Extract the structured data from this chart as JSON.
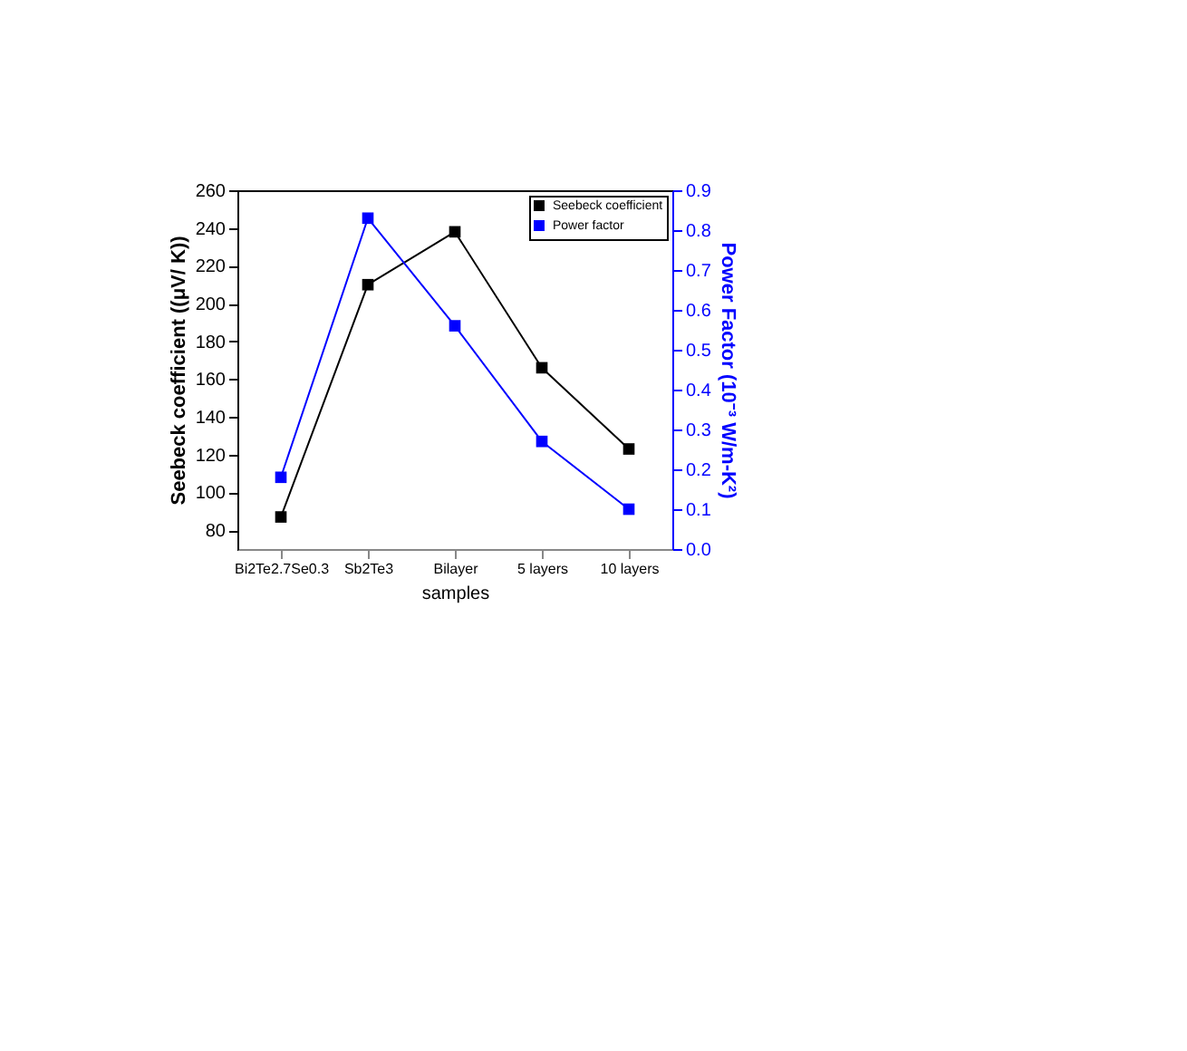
{
  "chart_data": {
    "type": "line",
    "xlabel": "samples",
    "ylabel": "Seebeck coefficient ((μV/ K))",
    "y2label": "Power Factor (10⁻³ W/m-K²)",
    "categories": [
      "Bi2Te2.7Se0.3",
      "Sb2Te3",
      "Bilayer",
      "5 layers",
      "10 layers"
    ],
    "series": [
      {
        "name": "Seebeck coefficient",
        "color": "#000000",
        "values": [
          87,
          210,
          238,
          166,
          123
        ]
      },
      {
        "name": "Power factor",
        "color": "#0000ff",
        "axis": "y2",
        "values": [
          0.18,
          0.83,
          0.56,
          0.27,
          0.1
        ]
      }
    ],
    "ylim": [
      70,
      260
    ],
    "yticks": [
      80,
      100,
      120,
      140,
      160,
      180,
      200,
      220,
      240,
      260
    ],
    "y2lim": [
      0,
      0.9
    ],
    "y2ticks": [
      {
        "value": 0,
        "label": "0.0"
      },
      0.1,
      0.2,
      0.3,
      0.4,
      0.5,
      0.6,
      0.7,
      0.8,
      0.9
    ],
    "marker": "square",
    "line_style": "solid",
    "legend": "top right",
    "grid": false
  }
}
